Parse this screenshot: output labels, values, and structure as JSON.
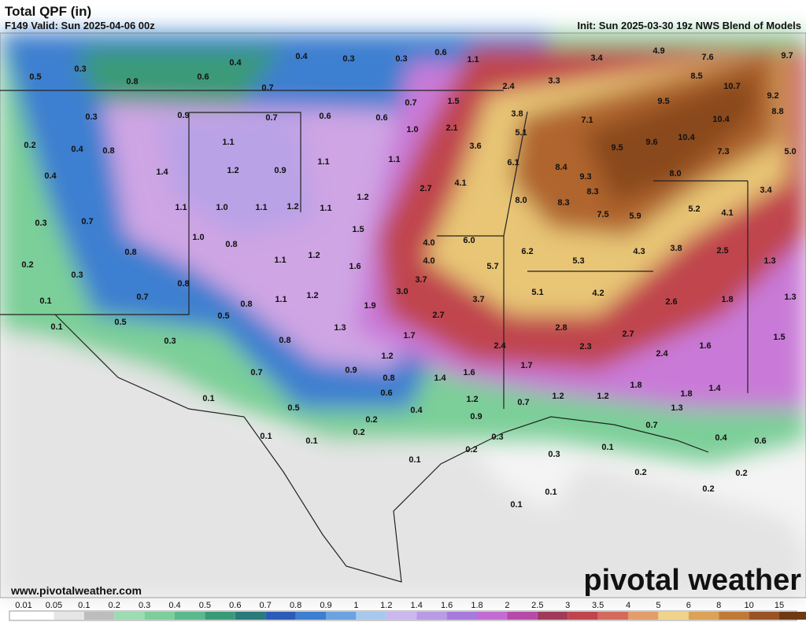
{
  "header": {
    "title": "Total QPF (in)",
    "valid": "F149 Valid: Sun 2025-04-06 00z",
    "init": "Init: Sun 2025-03-30 19z NWS Blend of Models"
  },
  "website": "www.pivotalweather.com",
  "brand": "pivotal weather",
  "colorbar": [
    "0.01",
    "0.05",
    "0.1",
    "0.2",
    "0.3",
    "0.4",
    "0.5",
    "0.6",
    "0.7",
    "0.8",
    "0.9",
    "1",
    "1.2",
    "1.4",
    "1.6",
    "1.8",
    "2",
    "2.5",
    "3",
    "3.5",
    "4",
    "5",
    "6",
    "8",
    "10",
    "15"
  ],
  "map_labels": [
    "0.5",
    "0.3",
    "0.8",
    "0.4",
    "0.6",
    "0.4",
    "0.3",
    "0.3",
    "0.6",
    "1.1",
    "3.4",
    "4.9",
    "7.6",
    "9.7",
    "0.7",
    "2.4",
    "3.3",
    "8.5",
    "10.7",
    "9.2",
    "0.7",
    "1.5",
    "9.5",
    "8.8",
    "0.3",
    "0.9",
    "0.7",
    "0.6",
    "0.6",
    "3.8",
    "7.1",
    "10.4",
    "1.0",
    "2.1",
    "5.1",
    "10.4",
    "0.2",
    "0.4",
    "0.8",
    "1.1",
    "3.6",
    "9.5",
    "9.6",
    "7.3",
    "5.0",
    "1.1",
    "1.1",
    "6.1",
    "0.4",
    "1.4",
    "1.2",
    "0.9",
    "8.4",
    "9.3",
    "8.0",
    "4.1",
    "2.7",
    "8.3",
    "3.4",
    "1.2",
    "8.0",
    "8.3",
    "5.9",
    "5.2",
    "4.1",
    "1.1",
    "1.0",
    "1.1",
    "1.2",
    "1.1",
    "7.5",
    "0.3",
    "0.7",
    "1.5",
    "1.0",
    "0.8",
    "4.0",
    "6.0",
    "6.2",
    "3.8",
    "2.5",
    "1.3",
    "0.8",
    "1.1",
    "1.2",
    "4.0",
    "5.3",
    "5.7",
    "4.3",
    "0.2",
    "1.6",
    "0.3",
    "3.7",
    "0.8",
    "0.1",
    "3.0",
    "5.1",
    "4.2",
    "0.7",
    "1.1",
    "1.2",
    "3.7",
    "2.6",
    "1.8",
    "1.3",
    "0.8",
    "1.9",
    "0.5",
    "2.7",
    "0.1",
    "0.5",
    "1.3",
    "2.8",
    "1.5",
    "1.7",
    "0.8",
    "0.3",
    "2.7",
    "2.4",
    "2.3",
    "1.6",
    "1.2",
    "2.4",
    "0.9",
    "1.7",
    "1.6",
    "0.7",
    "0.8",
    "1.4",
    "0.6",
    "1.8",
    "1.2",
    "1.2",
    "1.8",
    "1.4",
    "1.2",
    "0.7",
    "0.1",
    "0.5",
    "0.4",
    "1.3",
    "0.9",
    "0.2",
    "0.7",
    "0.2",
    "0.1",
    "0.1",
    "0.3",
    "0.4",
    "0.6",
    "0.1",
    "0.2",
    "0.3",
    "0.1",
    "0.2",
    "0.2",
    "0.1",
    "0.2",
    "0.1"
  ]
}
